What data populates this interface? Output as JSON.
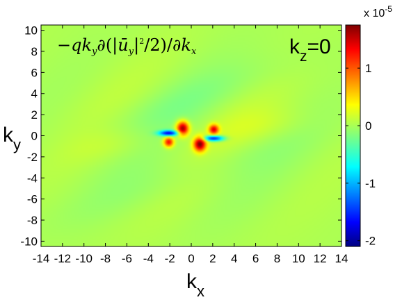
{
  "chart_data": {
    "type": "heatmap",
    "annotation": "−qk_y∂(|ū_y|²/2)/∂k_x",
    "annotation_parts": {
      "minus": "−",
      "q": "q",
      "k": "k",
      "y": "y",
      "partial": "∂",
      "open": "(|",
      "u": "ū",
      "close": "|",
      "two": "2",
      "over": "/2)/∂",
      "x": "x"
    },
    "panel_label": {
      "main": "k",
      "sub": "z",
      "rest": "=0"
    },
    "xlabel": {
      "main": "k",
      "sub": "x"
    },
    "ylabel": {
      "main": "k",
      "sub": "y"
    },
    "xlim": [
      -14,
      14
    ],
    "ylim": [
      -10.5,
      10.5
    ],
    "xticks": [
      "-14",
      "-12",
      "-10",
      "-8",
      "-6",
      "-4",
      "-2",
      "0",
      "2",
      "4",
      "6",
      "8",
      "10",
      "12",
      "14"
    ],
    "yticks": [
      "10",
      "8",
      "6",
      "4",
      "2",
      "0",
      "-2",
      "-4",
      "-6",
      "-8",
      "-10"
    ],
    "xtick_values": [
      -14,
      -12,
      -10,
      -8,
      -6,
      -4,
      -2,
      0,
      2,
      4,
      6,
      8,
      10,
      12,
      14
    ],
    "ytick_values": [
      10,
      8,
      6,
      4,
      2,
      0,
      -2,
      -4,
      -6,
      -8,
      -10
    ],
    "colorbar": {
      "range": [
        -2.1e-05,
        1.75e-05
      ],
      "ticks": [
        "1",
        "0",
        "-1",
        "-2"
      ],
      "tick_values": [
        1e-05,
        0,
        -1e-05,
        -2e-05
      ],
      "multiplier": {
        "base": "x 10",
        "exp": "-5"
      },
      "colormap": "jet"
    },
    "features": [
      {
        "x": -0.8,
        "y": 0.7,
        "value": 1.7e-05,
        "sx": 0.55,
        "sy": 0.65,
        "shape": "positive-lobe"
      },
      {
        "x": 0.8,
        "y": -0.8,
        "value": 1.7e-05,
        "sx": 0.55,
        "sy": 0.65,
        "shape": "positive-lobe"
      },
      {
        "x": 2.1,
        "y": 0.6,
        "value": 1.3e-05,
        "sx": 0.45,
        "sy": 0.45,
        "shape": "positive-lobe"
      },
      {
        "x": -2.1,
        "y": -0.6,
        "value": 1.3e-05,
        "sx": 0.45,
        "sy": 0.45,
        "shape": "positive-lobe"
      },
      {
        "x": -2.1,
        "y": 0.25,
        "value": -1.6e-05,
        "sx": 0.9,
        "sy": 0.25,
        "shape": "negative-streak"
      },
      {
        "x": 2.1,
        "y": -0.25,
        "value": -1.6e-05,
        "sx": 0.9,
        "sy": 0.25,
        "shape": "negative-streak"
      }
    ]
  }
}
